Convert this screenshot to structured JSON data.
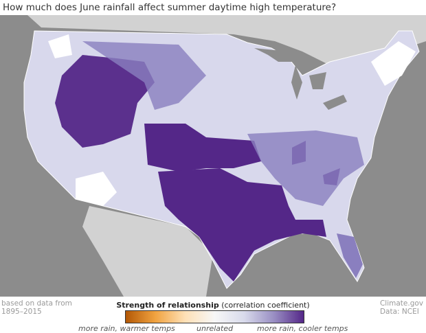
{
  "title": "How much does June rainfall affect summer daytime high temperature?",
  "footer": {
    "source_note_line1": "based on data from",
    "source_note_line2": "1895–2015",
    "credit_line1": "Climate.gov",
    "credit_line2": "Data: NCEI"
  },
  "legend": {
    "title_bold": "Strength of relationship",
    "title_rest": " (correlation coefficient)",
    "labels": [
      "more rain, warmer temps",
      "unrelated",
      "more rain, cooler temps"
    ],
    "colors": [
      "#b35806",
      "#f1a340",
      "#fee0b6",
      "#f7f7f7",
      "#d8daeb",
      "#998ec3",
      "#542788"
    ]
  },
  "colors": {
    "water": "#8c8c8c",
    "other_land": "#d2d2d2",
    "strong_negative": "#542788",
    "moderate": "#8a7fbf",
    "weak": "#cfcde6",
    "none": "#ffffff"
  }
}
